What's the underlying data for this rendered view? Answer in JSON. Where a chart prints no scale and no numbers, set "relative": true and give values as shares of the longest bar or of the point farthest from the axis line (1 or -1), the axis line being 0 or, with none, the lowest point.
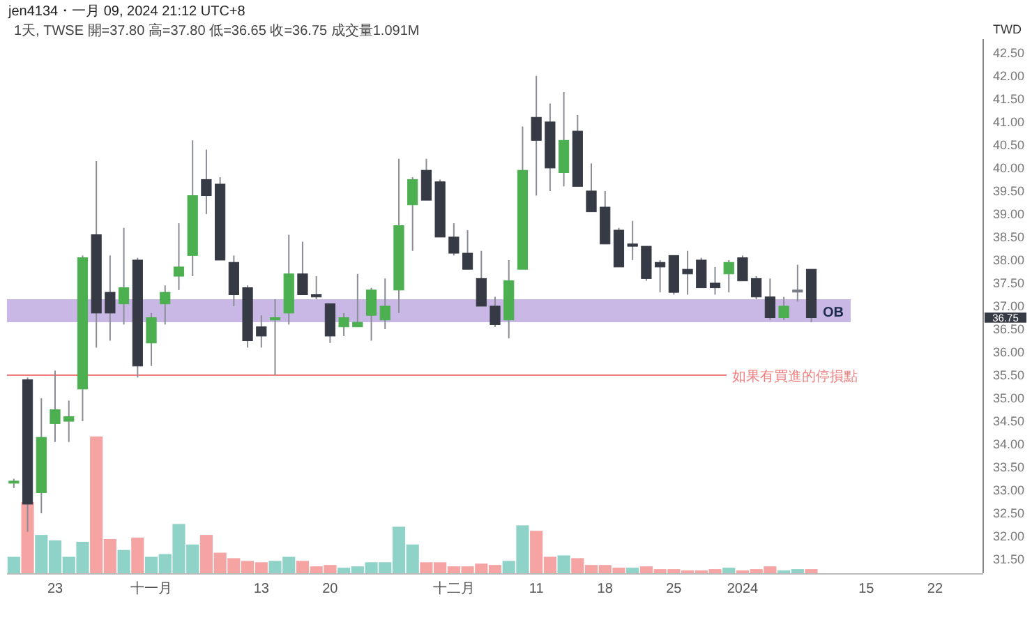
{
  "chart_data": [
    {
      "type": "candlestick",
      "title": "jen4134・一月 09, 2024 21:12 UTC+8",
      "subtitle": "1天, TWSE 開=37.80 高=37.80 低=36.65 收=36.75 成交量1.091M",
      "ylabel": "TWD",
      "categories": [
        null,
        null,
        null,
        "23",
        null,
        null,
        null,
        null,
        null,
        null,
        "十一月",
        null,
        null,
        null,
        null,
        null,
        null,
        null,
        "13",
        null,
        null,
        null,
        null,
        "20",
        null,
        null,
        null,
        null,
        null,
        null,
        null,
        null,
        "十二月",
        null,
        null,
        null,
        null,
        null,
        "11",
        null,
        null,
        null,
        null,
        "18",
        null,
        null,
        null,
        null,
        "25",
        null,
        null,
        null,
        null,
        "2024",
        null,
        null,
        null,
        null,
        null,
        null,
        null,
        null,
        "15",
        null,
        null,
        null,
        null,
        "22",
        null,
        null,
        null
      ],
      "ohlc": [
        [
          33.2,
          33.25,
          33.05,
          33.2
        ],
        [
          35.4,
          35.45,
          32.1,
          32.7
        ],
        [
          32.95,
          35.0,
          32.5,
          34.15
        ],
        [
          34.45,
          35.6,
          34.05,
          34.75
        ],
        [
          34.5,
          34.95,
          34.05,
          34.6
        ],
        [
          35.2,
          38.1,
          34.5,
          38.05
        ],
        [
          38.55,
          40.15,
          36.1,
          36.85
        ],
        [
          37.3,
          38.1,
          36.25,
          36.85
        ],
        [
          37.05,
          38.7,
          36.6,
          37.4
        ],
        [
          38.0,
          38.05,
          35.45,
          35.7
        ],
        [
          36.2,
          36.85,
          35.7,
          36.75
        ],
        [
          37.05,
          37.45,
          36.6,
          37.3
        ],
        [
          37.65,
          38.8,
          37.35,
          37.85
        ],
        [
          38.1,
          40.6,
          37.65,
          39.4
        ],
        [
          39.75,
          40.4,
          39.0,
          39.4
        ],
        [
          39.65,
          39.8,
          38.0,
          38.0
        ],
        [
          37.95,
          38.1,
          37.0,
          37.25
        ],
        [
          37.4,
          37.45,
          36.1,
          36.25
        ],
        [
          36.55,
          36.8,
          36.1,
          36.35
        ],
        [
          36.7,
          37.15,
          35.5,
          36.75
        ],
        [
          36.85,
          38.55,
          36.6,
          37.7
        ],
        [
          37.7,
          38.4,
          37.25,
          37.25
        ],
        [
          37.25,
          37.65,
          37.15,
          37.2
        ],
        [
          37.05,
          37.05,
          36.2,
          36.35
        ],
        [
          36.55,
          36.85,
          36.35,
          36.75
        ],
        [
          36.55,
          37.7,
          36.55,
          36.65
        ],
        [
          36.8,
          37.4,
          36.25,
          37.35
        ],
        [
          36.7,
          37.6,
          36.5,
          37.0
        ],
        [
          37.35,
          40.2,
          36.85,
          38.75
        ],
        [
          39.2,
          39.8,
          38.2,
          39.75
        ],
        [
          39.95,
          40.2,
          39.3,
          39.3
        ],
        [
          39.7,
          39.75,
          38.5,
          38.5
        ],
        [
          38.5,
          38.8,
          38.1,
          38.15
        ],
        [
          38.15,
          38.65,
          37.8,
          37.8
        ],
        [
          37.6,
          38.2,
          37.0,
          37.0
        ],
        [
          37.0,
          37.2,
          36.55,
          36.6
        ],
        [
          36.7,
          38.0,
          36.3,
          37.55
        ],
        [
          37.8,
          40.9,
          37.8,
          39.95
        ],
        [
          41.1,
          42.0,
          39.4,
          40.6
        ],
        [
          41.0,
          41.4,
          39.5,
          40.0
        ],
        [
          39.9,
          41.65,
          39.6,
          40.6
        ],
        [
          40.8,
          41.15,
          39.6,
          39.6
        ],
        [
          39.5,
          40.1,
          39.05,
          39.05
        ],
        [
          39.15,
          39.5,
          38.35,
          38.35
        ],
        [
          38.65,
          38.7,
          37.85,
          37.85
        ],
        [
          38.35,
          38.85,
          38.0,
          38.3
        ],
        [
          38.3,
          38.3,
          37.55,
          37.6
        ],
        [
          37.95,
          38.0,
          37.3,
          37.85
        ],
        [
          38.1,
          38.1,
          37.25,
          37.3
        ],
        [
          37.8,
          38.2,
          37.25,
          37.7
        ],
        [
          38.0,
          38.05,
          37.4,
          37.4
        ],
        [
          37.5,
          37.85,
          37.25,
          37.4
        ],
        [
          37.7,
          38.0,
          37.3,
          37.95
        ],
        [
          38.05,
          38.1,
          37.55,
          37.55
        ],
        [
          37.6,
          37.65,
          37.15,
          37.2
        ],
        [
          37.2,
          37.6,
          36.7,
          36.75
        ],
        [
          36.75,
          37.2,
          36.7,
          37.0
        ],
        [
          37.35,
          37.9,
          37.1,
          37.35
        ],
        [
          37.8,
          37.8,
          36.65,
          36.75
        ],
        null,
        null,
        null,
        null,
        null,
        null,
        null,
        null,
        null,
        null,
        null,
        null
      ],
      "colors": [
        "#4caf50",
        "#363a45",
        "#4caf50",
        "#4caf50",
        "#4caf50",
        "#4caf50",
        "#363a45",
        "#363a45",
        "#4caf50",
        "#363a45",
        "#4caf50",
        "#4caf50",
        "#4caf50",
        "#4caf50",
        "#363a45",
        "#363a45",
        "#363a45",
        "#363a45",
        "#363a45",
        "#4caf50",
        "#4caf50",
        "#363a45",
        "#363a45",
        "#363a45",
        "#4caf50",
        "#4caf50",
        "#4caf50",
        "#4caf50",
        "#4caf50",
        "#4caf50",
        "#363a45",
        "#363a45",
        "#363a45",
        "#363a45",
        "#363a45",
        "#363a45",
        "#4caf50",
        "#4caf50",
        "#363a45",
        "#363a45",
        "#4caf50",
        "#363a45",
        "#363a45",
        "#363a45",
        "#363a45",
        "#363a45",
        "#363a45",
        "#363a45",
        "#363a45",
        "#363a45",
        "#363a45",
        "#363a45",
        "#4caf50",
        "#363a45",
        "#363a45",
        "#363a45",
        "#4caf50",
        "#787b86",
        "#363a45",
        null,
        null,
        null,
        null,
        null,
        null,
        null,
        null,
        null,
        null,
        null,
        null
      ],
      "ylim": [
        31.2,
        42.8
      ],
      "yticks": [
        {
          "value": 31.5,
          "label": "31.50"
        },
        {
          "value": 32,
          "label": "32.00"
        },
        {
          "value": 32.5,
          "label": "32.50"
        },
        {
          "value": 33,
          "label": "33.00"
        },
        {
          "value": 33.5,
          "label": "33.50"
        },
        {
          "value": 34,
          "label": "34.00"
        },
        {
          "value": 34.5,
          "label": "34.50"
        },
        {
          "value": 35,
          "label": "35.00"
        },
        {
          "value": 35.5,
          "label": "35.50"
        },
        {
          "value": 36,
          "label": "36.00"
        },
        {
          "value": 36.5,
          "label": "36.50"
        },
        {
          "value": 37,
          "label": "37.00"
        },
        {
          "value": 37.5,
          "label": "37.50"
        },
        {
          "value": 38,
          "label": "38.00"
        },
        {
          "value": 38.5,
          "label": "38.50"
        },
        {
          "value": 39,
          "label": "39.00"
        },
        {
          "value": 39.5,
          "label": "39.50"
        },
        {
          "value": 40,
          "label": "40.00"
        },
        {
          "value": 40.5,
          "label": "40.50"
        },
        {
          "value": 41,
          "label": "41.00"
        },
        {
          "value": 41.5,
          "label": "41.50"
        },
        {
          "value": 42,
          "label": "42.00"
        },
        {
          "value": 42.5,
          "label": "42.50"
        }
      ],
      "bands": [
        {
          "axis": "y",
          "from": 36.65,
          "to": 37.15,
          "label": "OB",
          "color": "#c9b8e6"
        }
      ],
      "ref_lines": [
        {
          "axis": "y",
          "value": 35.5,
          "label": "如果有買進的停損點",
          "color": "#f08080"
        }
      ],
      "annotations": [
        "36.75"
      ]
    },
    {
      "type": "bar",
      "relative": true,
      "values": [
        0.12,
        0.52,
        0.28,
        0.24,
        0.12,
        0.23,
        1,
        0.25,
        0.17,
        0.26,
        0.12,
        0.14,
        0.36,
        0.21,
        0.28,
        0.15,
        0.11,
        0.09,
        0.08,
        0.09,
        0.12,
        0.09,
        0.05,
        0.06,
        0.04,
        0.05,
        0.08,
        0.08,
        0.34,
        0.21,
        0.08,
        0.08,
        0.05,
        0.05,
        0.07,
        0.06,
        0.09,
        0.35,
        0.31,
        0.12,
        0.13,
        0.11,
        0.06,
        0.06,
        0.04,
        0.04,
        0.05,
        0.03,
        0.03,
        0.02,
        0.02,
        0.03,
        0.04,
        0.02,
        0.03,
        0.05,
        0.02,
        0.03,
        0.03,
        null,
        null,
        null,
        null,
        null,
        null,
        null,
        null,
        null,
        null,
        null,
        null
      ],
      "colors": [
        "#8fd3c8",
        "#f5a3a3",
        "#8fd3c8",
        "#8fd3c8",
        "#8fd3c8",
        "#8fd3c8",
        "#f5a3a3",
        "#f5a3a3",
        "#8fd3c8",
        "#f5a3a3",
        "#8fd3c8",
        "#8fd3c8",
        "#8fd3c8",
        "#8fd3c8",
        "#f5a3a3",
        "#f5a3a3",
        "#f5a3a3",
        "#f5a3a3",
        "#f5a3a3",
        "#8fd3c8",
        "#8fd3c8",
        "#f5a3a3",
        "#f5a3a3",
        "#f5a3a3",
        "#8fd3c8",
        "#8fd3c8",
        "#8fd3c8",
        "#8fd3c8",
        "#8fd3c8",
        "#8fd3c8",
        "#f5a3a3",
        "#f5a3a3",
        "#f5a3a3",
        "#f5a3a3",
        "#f5a3a3",
        "#f5a3a3",
        "#8fd3c8",
        "#8fd3c8",
        "#f5a3a3",
        "#f5a3a3",
        "#8fd3c8",
        "#f5a3a3",
        "#f5a3a3",
        "#f5a3a3",
        "#f5a3a3",
        "#8fd3c8",
        "#f5a3a3",
        "#f5a3a3",
        "#f5a3a3",
        "#f5a3a3",
        "#f5a3a3",
        "#f5a3a3",
        "#8fd3c8",
        "#f5a3a3",
        "#f5a3a3",
        "#f5a3a3",
        "#8fd3c8",
        "#8fd3c8",
        "#f5a3a3",
        null,
        null,
        null,
        null,
        null,
        null,
        null,
        null,
        null,
        null,
        null,
        null
      ]
    }
  ]
}
